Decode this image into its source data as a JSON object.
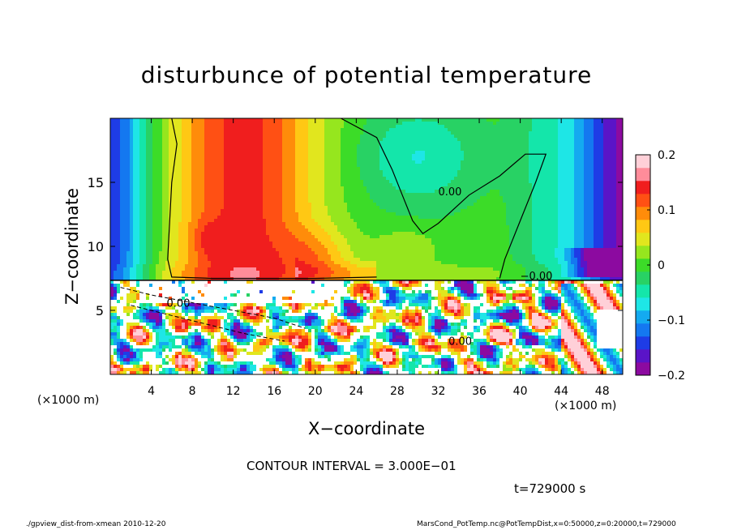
{
  "chart_data": {
    "type": "heatmap",
    "title": "disturbunce of potential temperature",
    "xlabel": "X−coordinate",
    "ylabel": "Z−coordinate",
    "x_unit": "(×1000 m)",
    "x_unit_right": "(×1000 m)",
    "xlim": [
      0,
      50
    ],
    "ylim": [
      0,
      20
    ],
    "x_ticks": [
      4,
      8,
      12,
      16,
      20,
      24,
      28,
      32,
      36,
      40,
      44,
      48
    ],
    "y_ticks": [
      5,
      10,
      15
    ],
    "colorbar": {
      "min": -0.2,
      "max": 0.2,
      "ticks": [
        "0.2",
        "0.1",
        "0",
        "−0.1",
        "−0.2"
      ],
      "colors": [
        "#8c0aa0",
        "#5a14c8",
        "#1e3ce6",
        "#1478f0",
        "#14aaf0",
        "#1ee6e6",
        "#14e6aa",
        "#28d264",
        "#3cdc28",
        "#96e61e",
        "#e1e61e",
        "#ffc814",
        "#ff8c0a",
        "#ff5014",
        "#f01e1e",
        "#ff8c9a",
        "#ffd0d8"
      ]
    },
    "contour_labels": [
      "0.00",
      "0.00",
      "−0.00",
      "0.00"
    ],
    "contour_interval": "CONTOUR INTERVAL = 3.000E−01",
    "time": "t=729000 s"
  },
  "footer": {
    "left": "./gpview_dist-from-xmean  2010-12-20",
    "right": "MarsCond_PotTemp.nc@PotTempDist,x=0:50000,z=0:20000,t=729000"
  }
}
